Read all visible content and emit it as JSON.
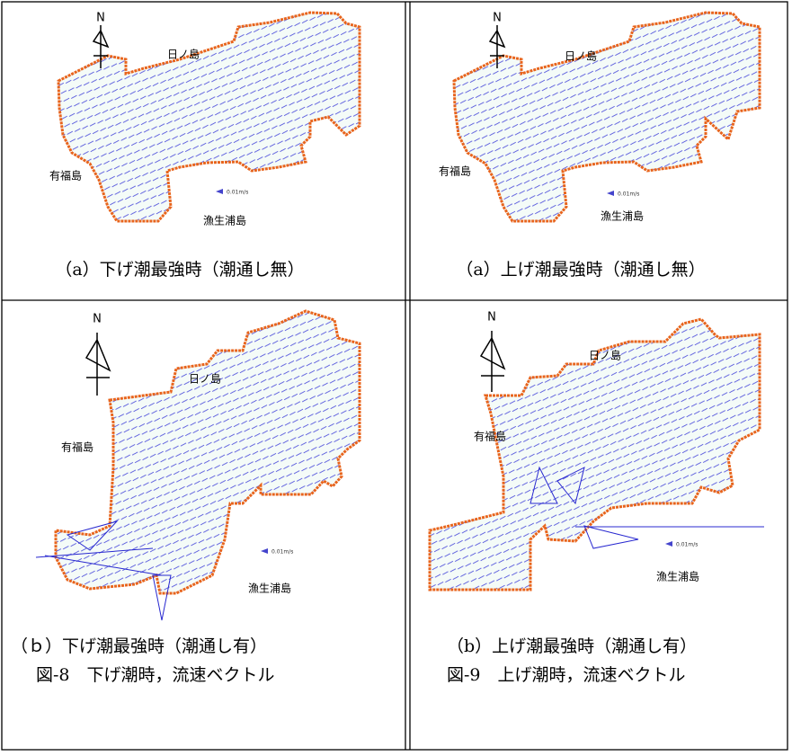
{
  "columns": [
    {
      "panels": [
        {
          "north": "N",
          "island_north": "日ノ島",
          "island_west": "有福島",
          "island_south": "漁生浦島",
          "scale": "0.01m/s",
          "caption": "（a）下げ潮最強時（潮通し無）"
        },
        {
          "north": "N",
          "island_north": "日ノ島",
          "island_west": "有福島",
          "island_south": "漁生浦島",
          "scale": "0.01m/s",
          "caption": "（ｂ）下げ潮最強時（潮通し有）"
        }
      ],
      "figure_caption": "図-8　下げ潮時，流速ベクトル"
    },
    {
      "panels": [
        {
          "north": "N",
          "island_north": "日ノ島",
          "island_west": "有福島",
          "island_south": "漁生浦島",
          "scale": "0.01m/s",
          "caption": "（a）上げ潮最強時（潮通し無）"
        },
        {
          "north": "N",
          "island_north": "日ノ島",
          "island_west": "有福島",
          "island_south": "漁生浦島",
          "scale": "0.01m/s",
          "caption": "（b）上げ潮最強時（潮通し有）"
        }
      ],
      "figure_caption": "図-9　上げ潮時，流速ベクトル"
    }
  ]
}
